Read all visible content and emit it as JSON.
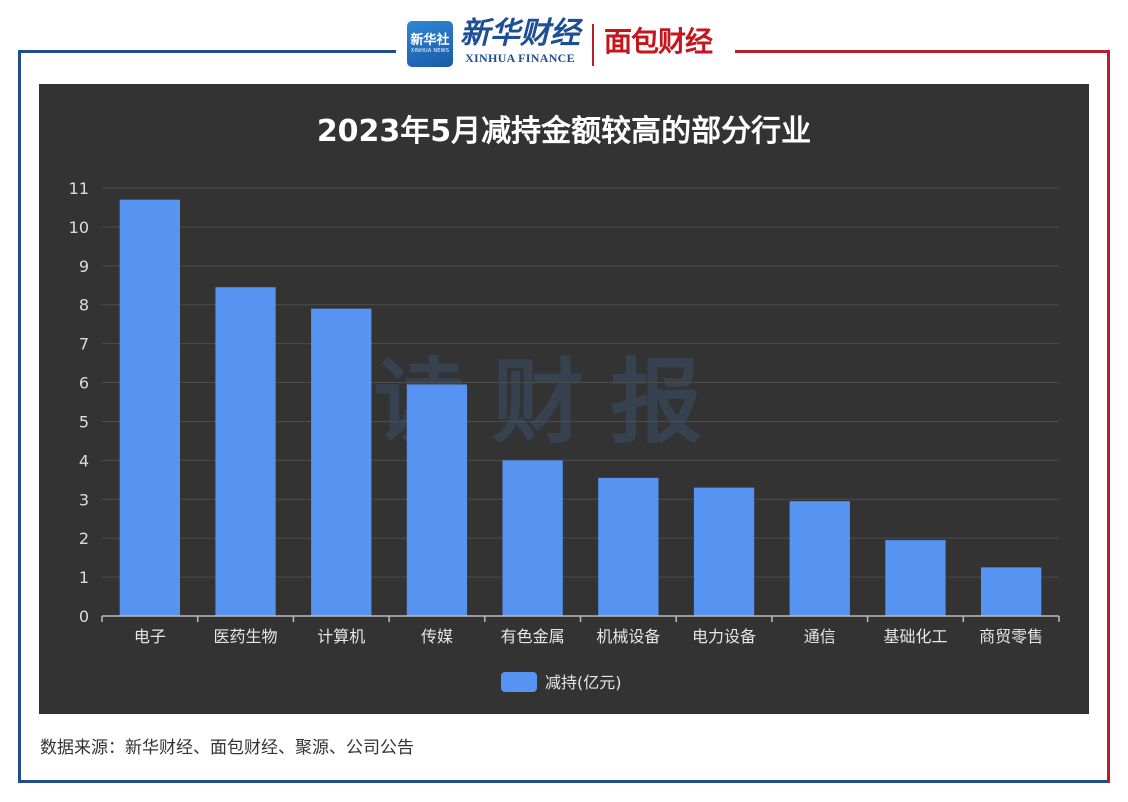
{
  "header": {
    "logo_box_main": "新华社",
    "logo_box_sub": "XINHUA NEWS",
    "brand1_main": "新华财经",
    "brand1_sub": "XINHUA FINANCE",
    "brand2": "面包财经"
  },
  "watermark": "读财报",
  "source": "数据来源：新华财经、面包财经、聚源、公司公告",
  "colors": {
    "bar": "#5794f2",
    "panel_bg": "#333333",
    "frame_blue": "#1f4e8c",
    "frame_red": "#b5202b"
  },
  "chart_data": {
    "type": "bar",
    "title": "2023年5月减持金额较高的部分行业",
    "categories": [
      "电子",
      "医药生物",
      "计算机",
      "传媒",
      "有色金属",
      "机械设备",
      "电力设备",
      "通信",
      "基础化工",
      "商贸零售"
    ],
    "series": [
      {
        "name": "减持(亿元)",
        "values": [
          10.7,
          8.45,
          7.9,
          5.95,
          4.0,
          3.55,
          3.3,
          2.95,
          1.95,
          1.25
        ]
      }
    ],
    "ylim": [
      0,
      11
    ],
    "yticks": [
      "0",
      "1",
      "2",
      "3",
      "4",
      "5",
      "6",
      "7",
      "8",
      "9",
      "10",
      "11"
    ],
    "grid": true,
    "legend": "bottom-center"
  }
}
